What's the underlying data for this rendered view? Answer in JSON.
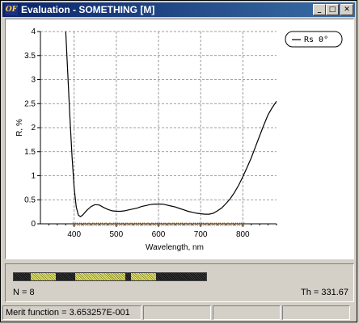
{
  "window": {
    "title": "Evaluation - SOMETHING [M]",
    "icon_text": "OF",
    "buttons": [
      {
        "name": "minimize-button",
        "glyph": "_"
      },
      {
        "name": "maximize-button",
        "glyph": "□"
      },
      {
        "name": "close-button",
        "glyph": "✕"
      }
    ]
  },
  "chart_data": {
    "type": "line",
    "xlabel": "Wavelength, nm",
    "ylabel": "R, %",
    "xlim": [
      320,
      880
    ],
    "ylim": [
      0,
      4
    ],
    "x_ticks": [
      400,
      500,
      600,
      700,
      800
    ],
    "y_ticks": [
      0,
      0.5,
      1,
      1.5,
      2,
      2.5,
      3,
      3.5,
      4
    ],
    "y_tick_labels": [
      "0",
      "0.5",
      "1",
      "1.5",
      "2",
      "2.5",
      "3",
      "3.5",
      "4"
    ],
    "grid": true,
    "legend_position": "top-right",
    "series": [
      {
        "name": "Rs  0°",
        "color": "#000000",
        "x": [
          380,
          385,
          390,
          395,
          400,
          405,
          410,
          415,
          420,
          430,
          440,
          450,
          460,
          470,
          480,
          490,
          500,
          510,
          520,
          530,
          540,
          550,
          560,
          570,
          580,
          590,
          600,
          610,
          620,
          630,
          640,
          650,
          660,
          670,
          680,
          690,
          700,
          710,
          720,
          730,
          740,
          750,
          760,
          770,
          780,
          790,
          800,
          810,
          820,
          830,
          840,
          850,
          860,
          870,
          880
        ],
        "y": [
          4.0,
          3.1,
          2.2,
          1.4,
          0.75,
          0.35,
          0.18,
          0.15,
          0.18,
          0.28,
          0.36,
          0.4,
          0.39,
          0.34,
          0.3,
          0.27,
          0.26,
          0.26,
          0.27,
          0.29,
          0.31,
          0.33,
          0.36,
          0.38,
          0.4,
          0.41,
          0.41,
          0.41,
          0.39,
          0.37,
          0.35,
          0.32,
          0.29,
          0.26,
          0.24,
          0.22,
          0.21,
          0.2,
          0.2,
          0.22,
          0.27,
          0.33,
          0.42,
          0.52,
          0.65,
          0.8,
          0.98,
          1.17,
          1.37,
          1.6,
          1.83,
          2.06,
          2.27,
          2.42,
          2.55
        ]
      }
    ],
    "target_markers": {
      "symbol": "×",
      "color": "#8b5a20",
      "x": [
        400,
        410,
        420,
        430,
        440,
        450,
        460,
        470,
        480,
        490,
        500,
        510,
        520,
        530,
        540,
        550,
        560,
        570,
        580,
        590,
        600,
        610,
        620,
        630,
        640,
        650,
        660,
        670,
        680,
        690,
        700,
        710,
        720,
        730,
        740,
        750,
        760,
        770,
        780,
        790,
        800
      ],
      "y": 0
    }
  },
  "design": {
    "layers": [
      {
        "type": "high",
        "thickness": 0.9
      },
      {
        "type": "low",
        "thickness": 1.3
      },
      {
        "type": "high",
        "thickness": 1.0
      },
      {
        "type": "low",
        "thickness": 2.6
      },
      {
        "type": "high",
        "thickness": 0.3
      },
      {
        "type": "low",
        "thickness": 1.3
      },
      {
        "type": "high",
        "thickness": 2.6
      },
      {
        "type": "low",
        "thickness": 0.0
      }
    ],
    "n_label": "N = 8",
    "th_label": "Th = 331.67"
  },
  "status": {
    "merit": "Merit function =  3.653257E-001",
    "cells": [
      "",
      "",
      "",
      ""
    ]
  }
}
